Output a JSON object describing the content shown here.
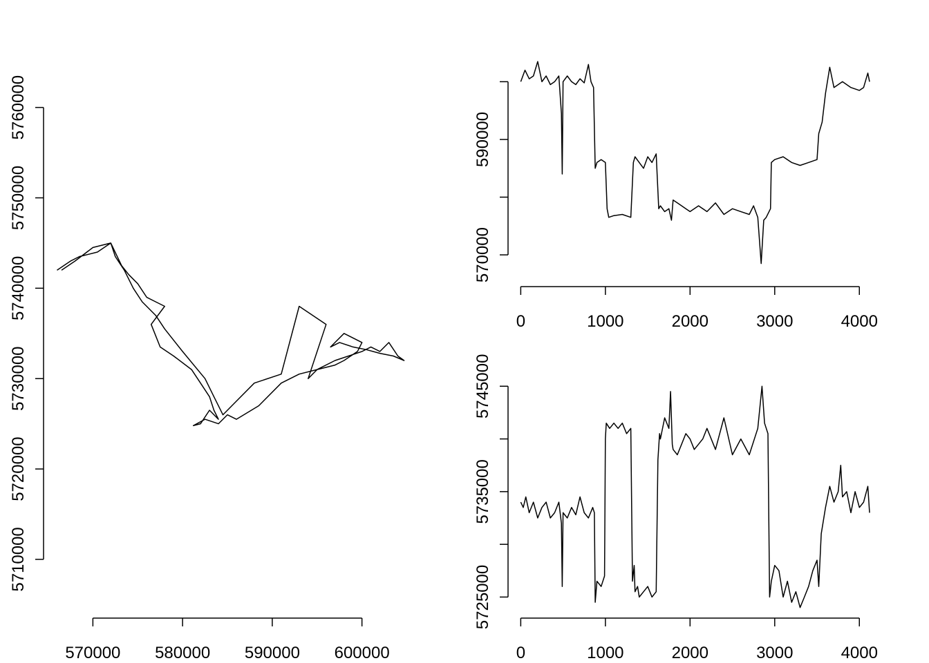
{
  "chart_data": [
    {
      "type": "line",
      "title": "",
      "xlabel": "",
      "ylabel": "",
      "xlim": [
        564500,
        606500
      ],
      "ylim": [
        5703500,
        5767000
      ],
      "xticks": [
        570000,
        580000,
        590000,
        600000
      ],
      "yticks": [
        5710000,
        5720000,
        5730000,
        5740000,
        5750000,
        5760000
      ],
      "xtick_labels": [
        "570000",
        "580000",
        "590000",
        "600000"
      ],
      "ytick_labels": [
        "5710000",
        "5720000",
        "5730000",
        "5740000",
        "5750000",
        "5760000"
      ],
      "grid": false,
      "series": [
        {
          "x": [
            566000,
            567500,
            568500,
            570500,
            572000,
            573200,
            574000,
            575000,
            576000,
            577000,
            578000,
            576500,
            577500,
            579000,
            581000,
            582000,
            583000,
            583500,
            584000,
            583000,
            582000,
            581200,
            582500,
            584000,
            585000,
            586000,
            588500,
            591000,
            593000,
            595000,
            597000,
            598500,
            600000,
            601000,
            602000,
            603000,
            604000,
            604700,
            603500,
            602000,
            600500,
            599000,
            597500,
            596500,
            598000,
            600000,
            599500,
            598000,
            597000,
            595000,
            594000,
            595500,
            596000,
            593000,
            591000,
            588000,
            586000,
            584500,
            583500,
            582500,
            580000,
            578000,
            577000,
            575500,
            574500,
            573500,
            572500,
            572000,
            570000,
            568000,
            566500
          ],
          "y": [
            5742000,
            5743000,
            5743500,
            5744000,
            5745000,
            5742500,
            5741500,
            5740500,
            5739000,
            5738500,
            5738000,
            5736000,
            5733500,
            5732500,
            5731000,
            5729500,
            5728000,
            5726500,
            5725500,
            5726500,
            5725000,
            5724800,
            5725500,
            5725000,
            5726000,
            5725500,
            5727000,
            5729500,
            5730500,
            5731000,
            5732000,
            5732500,
            5733000,
            5733500,
            5733000,
            5734000,
            5732500,
            5732000,
            5732500,
            5732800,
            5733200,
            5733500,
            5734000,
            5733500,
            5735000,
            5734000,
            5733000,
            5732000,
            5731500,
            5731000,
            5730000,
            5734500,
            5736000,
            5738000,
            5730500,
            5729500,
            5727500,
            5726000,
            5728000,
            5730000,
            5733000,
            5735500,
            5737000,
            5738500,
            5740000,
            5742000,
            5743500,
            5745000,
            5744500,
            5743000,
            5742000
          ]
        }
      ]
    },
    {
      "type": "line",
      "title": "",
      "xlabel": "",
      "ylabel": "",
      "xlim": [
        -150,
        4300
      ],
      "ylim": [
        564500,
        606500
      ],
      "xticks": [
        0,
        1000,
        2000,
        3000,
        4000
      ],
      "yticks": [
        570000,
        580000,
        590000,
        600000
      ],
      "xtick_labels": [
        "0",
        "1000",
        "2000",
        "3000",
        "4000"
      ],
      "ytick_labels": [
        "570000",
        "",
        "590000",
        ""
      ],
      "grid": false,
      "series": [
        {
          "x": [
            0,
            50,
            100,
            150,
            200,
            250,
            300,
            350,
            400,
            450,
            480,
            490,
            500,
            550,
            600,
            650,
            700,
            750,
            800,
            830,
            860,
            880,
            900,
            950,
            1000,
            1020,
            1040,
            1100,
            1200,
            1300,
            1330,
            1350,
            1400,
            1450,
            1500,
            1550,
            1600,
            1630,
            1650,
            1700,
            1750,
            1780,
            1800,
            1850,
            1900,
            1950,
            2000,
            2100,
            2200,
            2300,
            2400,
            2500,
            2600,
            2700,
            2750,
            2800,
            2840,
            2870,
            2900,
            2950,
            2960,
            3000,
            3100,
            3200,
            3300,
            3400,
            3500,
            3520,
            3560,
            3600,
            3650,
            3700,
            3800,
            3900,
            4000,
            4050,
            4100,
            4120
          ],
          "y": [
            600000,
            602000,
            600500,
            601000,
            603500,
            600000,
            601000,
            599500,
            600000,
            601000,
            594500,
            584000,
            600000,
            601000,
            600000,
            599500,
            600500,
            599800,
            603000,
            600000,
            599000,
            585000,
            586000,
            586500,
            586000,
            578000,
            576500,
            576800,
            577000,
            576500,
            586000,
            587000,
            586000,
            585000,
            587000,
            586000,
            587500,
            578000,
            578500,
            577500,
            578000,
            576000,
            579500,
            579000,
            578500,
            578000,
            577500,
            578500,
            577500,
            579000,
            577000,
            578000,
            577500,
            577000,
            578500,
            576500,
            568500,
            576000,
            576500,
            578000,
            586000,
            586500,
            587000,
            586000,
            585500,
            586000,
            586500,
            591000,
            593000,
            598000,
            602500,
            599000,
            600000,
            599000,
            598500,
            599000,
            601500,
            600000
          ]
        }
      ]
    },
    {
      "type": "line",
      "title": "",
      "xlabel": "",
      "ylabel": "",
      "xlim": [
        -150,
        4300
      ],
      "ylim": [
        5723000,
        5746000
      ],
      "xticks": [
        0,
        1000,
        2000,
        3000,
        4000
      ],
      "yticks": [
        5725000,
        5730000,
        5735000,
        5740000,
        5745000
      ],
      "xtick_labels": [
        "0",
        "1000",
        "2000",
        "3000",
        "4000"
      ],
      "ytick_labels": [
        "5725000",
        "",
        "5735000",
        "",
        "5745000"
      ],
      "grid": false,
      "series": [
        {
          "x": [
            0,
            30,
            60,
            100,
            150,
            200,
            250,
            300,
            350,
            400,
            450,
            480,
            490,
            500,
            550,
            600,
            650,
            700,
            750,
            800,
            850,
            870,
            880,
            900,
            950,
            990,
            1000,
            1010,
            1050,
            1100,
            1150,
            1200,
            1250,
            1300,
            1320,
            1340,
            1350,
            1380,
            1400,
            1450,
            1500,
            1550,
            1600,
            1620,
            1640,
            1650,
            1700,
            1750,
            1770,
            1790,
            1800,
            1850,
            1900,
            1950,
            2000,
            2050,
            2100,
            2150,
            2200,
            2300,
            2400,
            2500,
            2600,
            2700,
            2800,
            2850,
            2880,
            2920,
            2940,
            2960,
            3000,
            3050,
            3100,
            3150,
            3200,
            3250,
            3300,
            3350,
            3400,
            3450,
            3500,
            3520,
            3550,
            3600,
            3650,
            3700,
            3750,
            3780,
            3800,
            3850,
            3900,
            3950,
            4000,
            4050,
            4100,
            4120
          ],
          "y": [
            5734000,
            5733500,
            5734500,
            5733000,
            5734000,
            5732500,
            5733500,
            5734000,
            5732500,
            5733000,
            5734000,
            5732000,
            5726000,
            5733000,
            5732500,
            5733500,
            5732800,
            5734500,
            5733000,
            5732500,
            5733500,
            5733000,
            5724500,
            5726500,
            5726000,
            5727000,
            5740000,
            5741500,
            5741000,
            5741500,
            5741000,
            5741500,
            5740500,
            5741000,
            5726500,
            5728000,
            5725500,
            5726000,
            5725000,
            5725500,
            5726000,
            5725000,
            5725500,
            5738000,
            5740500,
            5740000,
            5742000,
            5741000,
            5744500,
            5739500,
            5739000,
            5738500,
            5739500,
            5740500,
            5740000,
            5739000,
            5739500,
            5740000,
            5741000,
            5739000,
            5742000,
            5738500,
            5740000,
            5738500,
            5741000,
            5745000,
            5741500,
            5740500,
            5725000,
            5726500,
            5728000,
            5727500,
            5725000,
            5726500,
            5724500,
            5725500,
            5724000,
            5725000,
            5726000,
            5727500,
            5728500,
            5726000,
            5731000,
            5733500,
            5735500,
            5734000,
            5735000,
            5737500,
            5734500,
            5735000,
            5733000,
            5735000,
            5733500,
            5734000,
            5735500,
            5733000
          ]
        }
      ]
    }
  ]
}
